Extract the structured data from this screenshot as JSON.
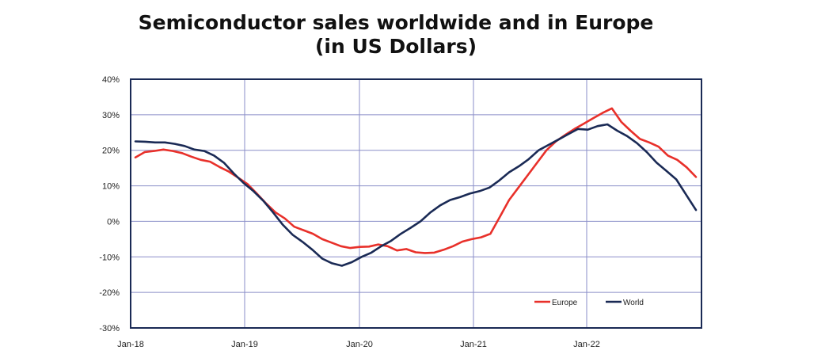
{
  "title_line1": "Semiconductor sales worldwide and in Europe",
  "title_line2": "(in US Dollars)",
  "chart_data": {
    "type": "line",
    "y_ticks": [
      "40%",
      "30%",
      "20%",
      "10%",
      "0%",
      "-10%",
      "-20%",
      "-30%"
    ],
    "x_ticks": [
      "Jan-18",
      "Jan-19",
      "Jan-20",
      "Jan-21",
      "Jan-22"
    ],
    "ylim": [
      -30,
      40
    ],
    "y_unit": "%",
    "grid": true,
    "legend_position": "bottom-right inside plot",
    "series": [
      {
        "name": "Europe",
        "color": "#e8302a",
        "values": [
          18,
          19.5,
          19.8,
          20.2,
          19.8,
          19.2,
          18.2,
          17.3,
          16.8,
          15.3,
          14,
          12.3,
          10.5,
          7.8,
          5,
          2.5,
          0.8,
          -1.5,
          -2.5,
          -3.5,
          -5,
          -6,
          -7,
          -7.5,
          -7.2,
          -7.1,
          -6.5,
          -7,
          -8.2,
          -7.8,
          -8.7,
          -8.9,
          -8.8,
          -8,
          -7,
          -5.7,
          -5,
          -4.5,
          -3.5,
          1.2,
          6,
          9.5,
          13,
          16.5,
          20,
          22.5,
          24.3,
          26,
          27.5,
          29,
          30.5,
          31.8,
          28,
          25.5,
          23.2,
          22.2,
          21,
          18.5,
          17.3,
          15.2,
          12.5
        ]
      },
      {
        "name": "World",
        "color": "#1a2a55",
        "values": [
          22.5,
          22.4,
          22.2,
          22.2,
          21.8,
          21.2,
          20.2,
          19.8,
          18.5,
          16.5,
          13.5,
          10.8,
          8.5,
          5.8,
          2.5,
          -1,
          -3.8,
          -5.8,
          -8,
          -10.5,
          -11.8,
          -12.5,
          -11.5,
          -10,
          -8.8,
          -7,
          -5.5,
          -3.5,
          -1.8,
          0,
          2.5,
          4.5,
          6,
          6.8,
          7.8,
          8.5,
          9.5,
          11.5,
          13.8,
          15.5,
          17.5,
          20,
          21.5,
          23,
          24.5,
          26,
          25.8,
          26.8,
          27.3,
          25.5,
          24,
          22,
          19.5,
          16.5,
          14.2,
          11.8,
          7.5,
          3.2
        ]
      }
    ]
  }
}
